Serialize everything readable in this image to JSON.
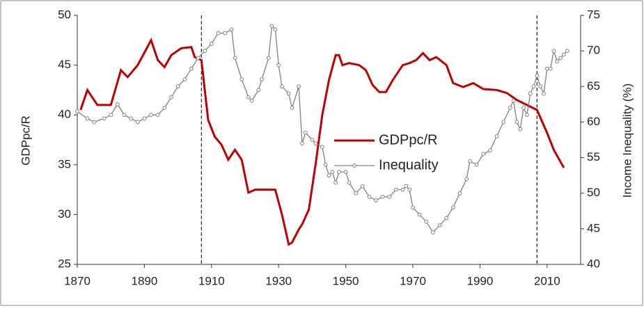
{
  "chart_data": {
    "type": "line",
    "y_label": "GDPpc/R",
    "y2_label": "Income Inequality (%)",
    "xlim": [
      1870,
      2020
    ],
    "xticks": [
      1870,
      1890,
      1910,
      1930,
      1950,
      1970,
      1990,
      2010
    ],
    "ylim": [
      25,
      50
    ],
    "yticks": [
      25,
      30,
      35,
      40,
      45,
      50
    ],
    "y2lim": [
      40,
      75
    ],
    "y2ticks": [
      40,
      45,
      50,
      55,
      60,
      65,
      70,
      75
    ],
    "vlines": [
      1907,
      2007
    ],
    "series": [
      {
        "name": "GDPpc/R",
        "color": "#c00000",
        "markers": false,
        "x": [
          1871,
          1873,
          1876,
          1880,
          1883,
          1885,
          1888,
          1892,
          1894,
          1896,
          1898,
          1901,
          1904,
          1905,
          1907,
          1909,
          1911,
          1913,
          1915,
          1917,
          1919,
          1921,
          1923,
          1926,
          1929,
          1931,
          1933,
          1934,
          1936,
          1937,
          1939,
          1941,
          1943,
          1945,
          1947,
          1948,
          1949,
          1951,
          1954,
          1956,
          1958,
          1960,
          1962,
          1964,
          1967,
          1969,
          1971,
          1973,
          1975,
          1977,
          1980,
          1982,
          1985,
          1988,
          1991,
          1995,
          1998,
          2001,
          2004,
          2007,
          2010,
          2012,
          2015
        ],
        "values": [
          40.5,
          42.5,
          41,
          41,
          44.5,
          43.8,
          45,
          47.5,
          45.5,
          44.8,
          46,
          46.7,
          46.8,
          45.8,
          45.5,
          39.5,
          37.8,
          37,
          35.5,
          36.5,
          35.5,
          32.2,
          32.5,
          32.5,
          32.5,
          30,
          27,
          27.2,
          28.5,
          29,
          30.5,
          35,
          40,
          43.5,
          46,
          46,
          45,
          45.2,
          45,
          44.5,
          43,
          42.3,
          42.3,
          43.5,
          45,
          45.2,
          45.5,
          46.2,
          45.5,
          45.8,
          45,
          43.2,
          42.8,
          43.2,
          42.6,
          42.5,
          42.2,
          41.5,
          41,
          40.5,
          38.2,
          36.5,
          34.7
        ]
      },
      {
        "name": "Inequality",
        "color": "#808080",
        "markers": true,
        "axis": "y2",
        "x": [
          1870,
          1873,
          1875,
          1878,
          1880,
          1882,
          1884,
          1886,
          1888,
          1890,
          1892,
          1894,
          1896,
          1898,
          1900,
          1902,
          1904,
          1906,
          1908,
          1910,
          1912,
          1914,
          1916,
          1917,
          1919,
          1921,
          1922,
          1924,
          1925,
          1927,
          1928,
          1929,
          1930,
          1931,
          1933,
          1934,
          1936,
          1937,
          1938,
          1940,
          1941,
          1943,
          1944,
          1945,
          1946,
          1947,
          1948,
          1950,
          1951,
          1953,
          1955,
          1957,
          1959,
          1961,
          1963,
          1965,
          1967,
          1968,
          1969,
          1970,
          1972,
          1974,
          1976,
          1978,
          1980,
          1982,
          1984,
          1986,
          1987,
          1989,
          1991,
          1993,
          1995,
          1997,
          1999,
          2000,
          2001,
          2002,
          2003,
          2004,
          2005,
          2006,
          2007,
          2008,
          2009,
          2010,
          2011,
          2012,
          2013,
          2014,
          2015,
          2016
        ],
        "values": [
          61.5,
          60.5,
          60,
          60.5,
          61,
          62.5,
          61,
          60.5,
          60,
          60.5,
          61,
          61,
          62,
          63.5,
          65,
          66,
          67.5,
          69,
          70,
          71,
          72.5,
          72.5,
          73,
          69,
          66,
          63.5,
          63,
          64.5,
          66,
          69,
          73.5,
          73,
          68,
          65,
          64,
          62,
          65,
          57,
          58.5,
          57.5,
          57,
          56.5,
          54,
          52.5,
          53,
          51.5,
          53,
          53,
          51.5,
          50,
          51,
          49.5,
          49,
          49.5,
          49.5,
          50.5,
          50.5,
          51,
          50.5,
          48,
          47,
          46,
          44.5,
          45.5,
          46.5,
          48,
          50,
          52,
          54.5,
          54,
          55.5,
          56,
          58,
          60,
          62,
          63,
          60,
          59,
          62,
          61,
          64,
          65,
          66.5,
          65,
          64,
          67.5,
          67.5,
          70,
          68.5,
          69,
          69.5,
          70
        ]
      }
    ]
  }
}
